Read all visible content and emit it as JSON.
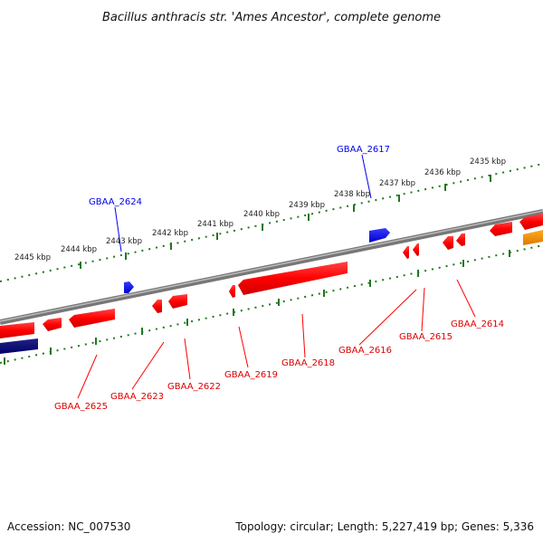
{
  "title": "Bacillus anthracis str. 'Ames Ancestor', complete genome",
  "footer": {
    "accession": "Accession: NC_007530",
    "summary": "Topology: circular; Length: 5,227,419 bp; Genes: 5,336"
  },
  "kbp_labels": [
    "2445 kbp",
    "2444 kbp",
    "2443 kbp",
    "2442 kbp",
    "2441 kbp",
    "2440 kbp",
    "2439 kbp",
    "2438 kbp",
    "2437 kbp",
    "2436 kbp",
    "2435 kbp"
  ],
  "gene_labels_forward": [
    "GBAA_2624",
    "GBAA_2617"
  ],
  "gene_labels_reverse": [
    "GBAA_2625",
    "GBAA_2623",
    "GBAA_2622",
    "GBAA_2619",
    "GBAA_2618",
    "GBAA_2616",
    "GBAA_2615",
    "GBAA_2614"
  ],
  "colors": {
    "forward_gene": "#0000ee",
    "reverse_gene": "#ff0000",
    "rna_gene": "#ff9900",
    "other_gene": "#000077",
    "backbone": "#808080",
    "tick": "#227722"
  }
}
